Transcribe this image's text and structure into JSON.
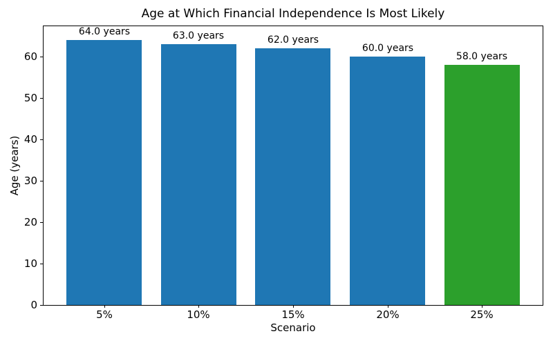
{
  "chart_data": {
    "type": "bar",
    "title": "Age at Which Financial Independence Is Most Likely",
    "xlabel": "Scenario",
    "ylabel": "Age (years)",
    "categories": [
      "5%",
      "10%",
      "15%",
      "20%",
      "25%"
    ],
    "values": [
      64.0,
      63.0,
      62.0,
      60.0,
      58.0
    ],
    "bar_labels": [
      "64.0 years",
      "63.0 years",
      "62.0 years",
      "60.0 years",
      "58.0 years"
    ],
    "bar_colors": [
      "#1f77b4",
      "#1f77b4",
      "#1f77b4",
      "#1f77b4",
      "#2ca02c"
    ],
    "default_color": "#1f77b4",
    "highlight_color": "#2ca02c",
    "ylim": [
      0,
      67.33
    ],
    "yticks": [
      0,
      10,
      20,
      30,
      40,
      50,
      60
    ],
    "grid": false,
    "legend": null,
    "background_color": "#ffffff",
    "text_color": "#000000"
  }
}
